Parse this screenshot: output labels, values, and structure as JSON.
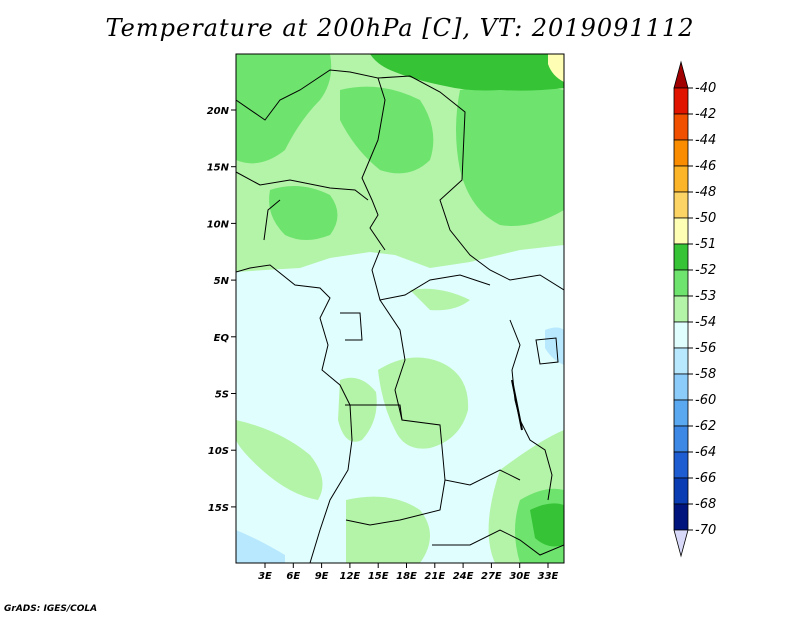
{
  "title": "Temperature at 200hPa [C], VT: 2019091112",
  "credit": "GrADS: IGES/COLA",
  "map": {
    "lon_ticks": [
      "3E",
      "6E",
      "9E",
      "12E",
      "15E",
      "18E",
      "21E",
      "24E",
      "27E",
      "30E",
      "33E"
    ],
    "lat_ticks": [
      "20N",
      "15N",
      "10N",
      "5N",
      "EQ",
      "5S",
      "10S",
      "15S"
    ]
  },
  "colorbar": {
    "labels": [
      "-40",
      "-42",
      "-44",
      "-46",
      "-48",
      "-50",
      "-51",
      "-52",
      "-53",
      "-54",
      "-56",
      "-58",
      "-60",
      "-62",
      "-64",
      "-66",
      "-68",
      "-70"
    ],
    "colors": [
      "#a00000",
      "#e11400",
      "#f05000",
      "#fa8c00",
      "#fcb428",
      "#fcd466",
      "#fefeb4",
      "#36c436",
      "#6ee46e",
      "#b4f4a8",
      "#e0fefe",
      "#b8e8fe",
      "#8cccfa",
      "#5aa8f0",
      "#3c88e4",
      "#1e5cd2",
      "#0a3cb4",
      "#00147e",
      "#d8d8f8"
    ]
  },
  "colors": {
    "land_light": "#e0fefe",
    "green_pale": "#b4f4a8",
    "green_mid": "#6ee46e",
    "green_dark": "#36c436",
    "blue_light": "#b8e8fe",
    "yellow": "#fefeb4"
  }
}
